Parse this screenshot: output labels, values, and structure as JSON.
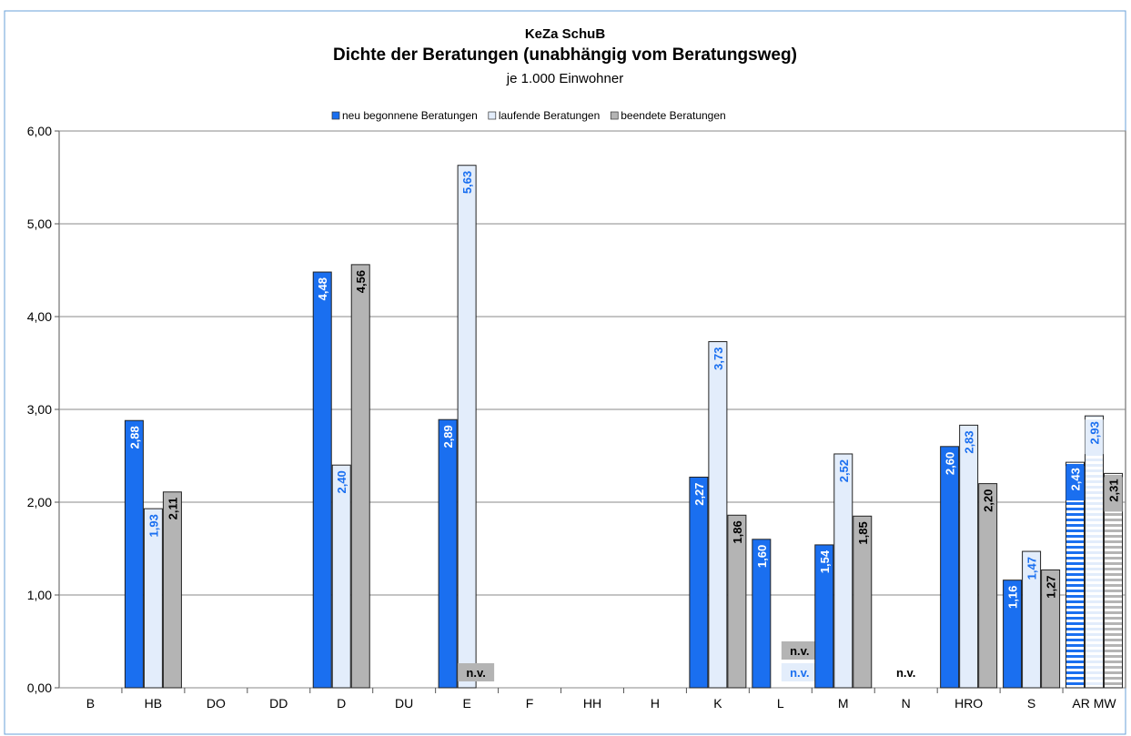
{
  "chart_data": {
    "type": "bar",
    "title": "KeZa SchuB",
    "subtitle": "Dichte der Beratungen (unabhängig vom Beratungsweg)",
    "note": "je 1.000 Einwohner",
    "categories": [
      "B",
      "HB",
      "DO",
      "DD",
      "D",
      "DU",
      "E",
      "F",
      "HH",
      "H",
      "K",
      "L",
      "M",
      "N",
      "HRO",
      "S",
      "AR MW"
    ],
    "series": [
      {
        "name": "neu begonnene Beratungen",
        "color": "#1a6ff0",
        "values": [
          null,
          2.88,
          null,
          null,
          4.48,
          null,
          2.89,
          null,
          null,
          null,
          2.27,
          1.6,
          1.54,
          null,
          2.6,
          1.16,
          2.43
        ],
        "value_labels": [
          null,
          "2,88",
          null,
          null,
          "4,48",
          null,
          "2,89",
          null,
          null,
          null,
          "2,27",
          "1,60",
          "1,54",
          null,
          "2,60",
          "1,16",
          "2,43"
        ]
      },
      {
        "name": "laufende Beratungen",
        "color": "#e3edfb",
        "values": [
          null,
          1.93,
          null,
          null,
          2.4,
          null,
          5.63,
          null,
          null,
          null,
          3.73,
          null,
          2.52,
          null,
          2.83,
          1.47,
          2.93
        ],
        "value_labels": [
          null,
          "1,93",
          null,
          null,
          "2,40",
          null,
          "5,63",
          null,
          null,
          null,
          "3,73",
          "n.v.",
          "2,52",
          "n.v.",
          "2,83",
          "1,47",
          "2,93"
        ]
      },
      {
        "name": "beendete Beratungen",
        "color": "#b4b4b4",
        "values": [
          null,
          2.11,
          null,
          null,
          4.56,
          null,
          null,
          null,
          null,
          null,
          1.86,
          null,
          1.85,
          null,
          2.2,
          1.27,
          2.31
        ],
        "value_labels": [
          null,
          "2,11",
          null,
          null,
          "4,56",
          null,
          "n.v.",
          null,
          null,
          null,
          "1,86",
          "n.v.",
          "1,85",
          null,
          "2,20",
          "1,27",
          "2,31"
        ]
      }
    ],
    "ylim": [
      0,
      6
    ],
    "yticks": [
      {
        "value": 0,
        "label": "0,00"
      },
      {
        "value": 1,
        "label": "1,00"
      },
      {
        "value": 2,
        "label": "2,00"
      },
      {
        "value": 3,
        "label": "3,00"
      },
      {
        "value": 4,
        "label": "4,00"
      },
      {
        "value": 5,
        "label": "5,00"
      },
      {
        "value": 6,
        "label": "6,00"
      }
    ],
    "grid": true
  }
}
